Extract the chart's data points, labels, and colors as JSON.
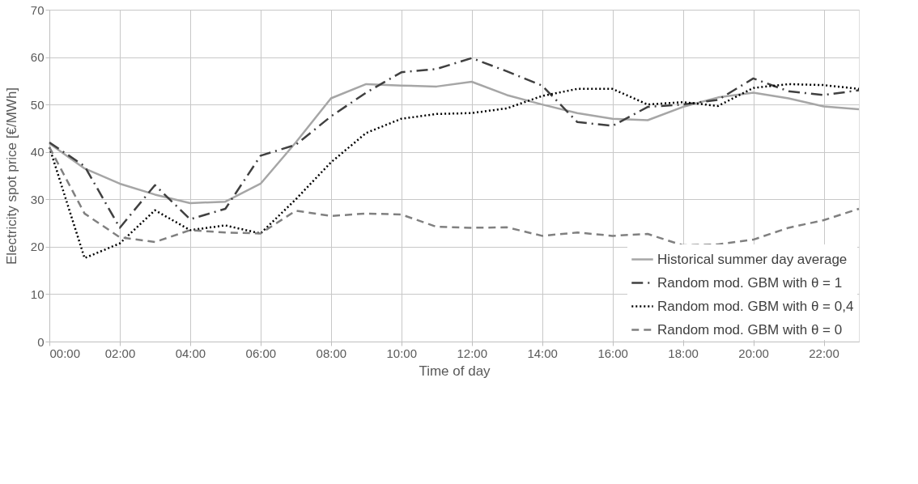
{
  "chart_data": {
    "type": "line",
    "xlabel": "Time of day",
    "ylabel": "Electricity spot price [€/MWh]",
    "x": [
      0,
      1,
      2,
      3,
      4,
      5,
      6,
      7,
      8,
      9,
      10,
      11,
      12,
      13,
      14,
      15,
      16,
      17,
      18,
      19,
      20,
      21,
      22,
      23
    ],
    "xlim": [
      0,
      23
    ],
    "xticks": [
      {
        "value": 0,
        "label": "00:00"
      },
      {
        "value": 2,
        "label": "02:00"
      },
      {
        "value": 4,
        "label": "04:00"
      },
      {
        "value": 6,
        "label": "06:00"
      },
      {
        "value": 8,
        "label": "08:00"
      },
      {
        "value": 10,
        "label": "10:00"
      },
      {
        "value": 12,
        "label": "12:00"
      },
      {
        "value": 14,
        "label": "14:00"
      },
      {
        "value": 16,
        "label": "16:00"
      },
      {
        "value": 18,
        "label": "18:00"
      },
      {
        "value": 20,
        "label": "20:00"
      },
      {
        "value": 22,
        "label": "22:00"
      }
    ],
    "ylim": [
      0,
      70
    ],
    "yticks": [
      0,
      10,
      20,
      30,
      40,
      50,
      60,
      70
    ],
    "grid": true,
    "legend": "bottom right",
    "marker": "none",
    "series": [
      {
        "name": "Historical summer day average",
        "color": "#a6a6a6",
        "line_style": "solid",
        "values": [
          41.8,
          36.5,
          33.3,
          31,
          29.2,
          29.5,
          33.3,
          42,
          51.3,
          54.3,
          54,
          53.8,
          54.8,
          52,
          50,
          48.2,
          47,
          46.7,
          49.5,
          51.5,
          52.5,
          51.3,
          49.6,
          49
        ]
      },
      {
        "name": "Random mod. GBM with θ = 1",
        "color": "#404040",
        "line_style": "dashdot",
        "values": [
          42,
          37,
          24,
          33,
          25.8,
          28,
          39.2,
          41.5,
          47.5,
          52.5,
          56.8,
          57.5,
          59.8,
          57,
          54,
          46.3,
          45.5,
          49.5,
          50,
          51,
          55.5,
          52.8,
          52,
          53
        ]
      },
      {
        "name": "Random mod. GBM with θ = 0,4",
        "color": "#000000",
        "line_style": "dotted",
        "values": [
          41,
          17.6,
          20.7,
          27.7,
          23.5,
          24.5,
          22.8,
          30,
          37.8,
          44,
          47,
          48,
          48.2,
          49.2,
          51.8,
          53.3,
          53.3,
          50,
          50.5,
          49.7,
          53.5,
          54.3,
          54.1,
          53.3
        ]
      },
      {
        "name": "Random mod. GBM with θ = 0",
        "color": "#808080",
        "line_style": "dashed",
        "values": [
          41,
          27,
          22,
          21,
          23.5,
          23,
          22.8,
          27.6,
          26.5,
          27,
          26.8,
          24.2,
          24,
          24.1,
          22.3,
          23,
          22.3,
          22.7,
          20.3,
          20.5,
          21.5,
          24,
          25.6,
          28
        ]
      }
    ]
  }
}
